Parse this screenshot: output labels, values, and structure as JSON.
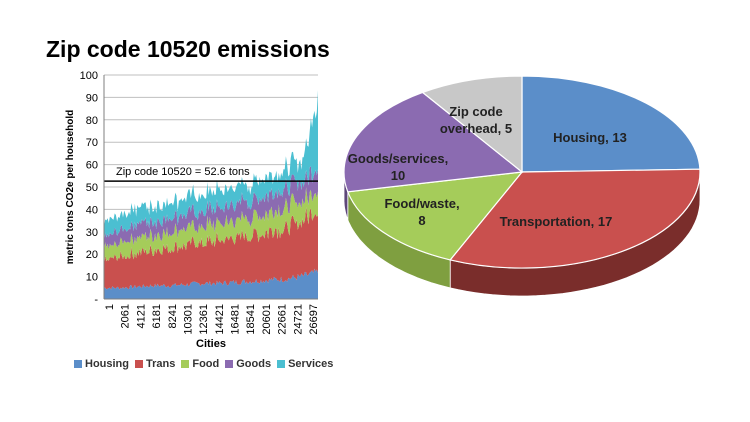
{
  "title": "Zip code 10520 emissions",
  "colors": {
    "housing": "#5b8ec9",
    "trans": "#c9504e",
    "food": "#a5cc5a",
    "goods": "#8b6bb1",
    "services": "#4bbfd1"
  },
  "chart_data": [
    {
      "type": "area",
      "stacked": true,
      "ylabel": "metric tons CO2e per household",
      "xlabel": "Cities",
      "ylim": [
        0,
        100
      ],
      "yticks": [
        "-",
        "10",
        "20",
        "30",
        "40",
        "50",
        "60",
        "70",
        "80",
        "90",
        "100"
      ],
      "x_tick_labels": [
        "1",
        "2061",
        "4121",
        "6181",
        "8241",
        "10301",
        "12361",
        "14421",
        "16481",
        "18541",
        "20601",
        "22661",
        "24721",
        "26697"
      ],
      "grid": true,
      "legend_position": "bottom",
      "series": [
        {
          "name": "Housing",
          "values": [
            5,
            5,
            5.5,
            6,
            6,
            6.5,
            7,
            7,
            7.5,
            8,
            8.5,
            9,
            10,
            12
          ]
        },
        {
          "name": "Trans",
          "values": [
            12,
            14,
            15,
            16,
            17,
            17.5,
            18,
            19,
            20,
            21,
            22,
            23,
            24,
            28
          ]
        },
        {
          "name": "Food",
          "values": [
            6,
            6.5,
            7,
            7,
            7,
            7.5,
            7.5,
            8,
            8,
            8,
            8.5,
            9,
            9,
            10
          ]
        },
        {
          "name": "Goods",
          "values": [
            5,
            5.5,
            6,
            6,
            6.5,
            6.5,
            7,
            7,
            7,
            7.5,
            8,
            8.5,
            9,
            10
          ]
        },
        {
          "name": "Services",
          "values": [
            7,
            7,
            7,
            7,
            7,
            7.5,
            7.5,
            7.5,
            8,
            8,
            8,
            8.5,
            9,
            30
          ]
        }
      ],
      "reference_line": {
        "value": 52.6,
        "label": "Zip code 10520 = 52.6 tons"
      }
    },
    {
      "type": "pie",
      "style": "3d",
      "slices": [
        {
          "name": "Housing",
          "value": 13,
          "label_lines": [
            "Housing, 13"
          ]
        },
        {
          "name": "Transportation",
          "value": 17,
          "label_lines": [
            "Transportation, 17"
          ]
        },
        {
          "name": "Food/waste",
          "value": 8,
          "label_lines": [
            "Food/waste,",
            "8"
          ]
        },
        {
          "name": "Goods/services",
          "value": 10,
          "label_lines": [
            "Goods/services,",
            "10"
          ]
        },
        {
          "name": "Zip code overhead",
          "value": 5,
          "label_lines": [
            "Zip code",
            "overhead, 5"
          ]
        }
      ]
    }
  ],
  "legend": [
    {
      "label": "Housing",
      "color": "#5b8ec9"
    },
    {
      "label": "Trans",
      "color": "#c9504e"
    },
    {
      "label": "Food",
      "color": "#a5cc5a"
    },
    {
      "label": "Goods",
      "color": "#8b6bb1"
    },
    {
      "label": "Services",
      "color": "#4bbfd1"
    }
  ]
}
